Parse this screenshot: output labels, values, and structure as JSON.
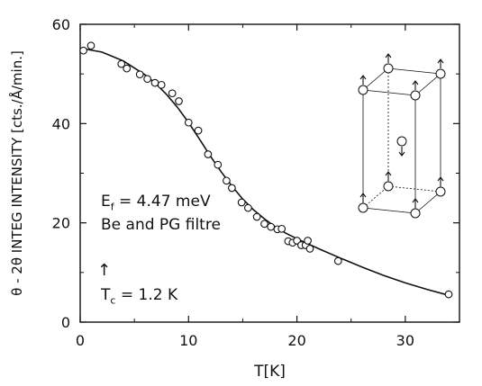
{
  "chart_data": {
    "type": "scatter",
    "xlabel": "T[K]",
    "ylabel": "θ - 2θ  INTEG  INTENSITY  [cts./Å/min.]",
    "xlim": [
      0,
      35
    ],
    "ylim": [
      0,
      60
    ],
    "xticks": [
      "0",
      "10",
      "20",
      "30"
    ],
    "yticks": [
      "0",
      "20",
      "40",
      "60"
    ],
    "grid": false,
    "legend": "none",
    "series": [
      {
        "marker": "open-circle",
        "x": [
          0.3,
          1.0,
          3.8,
          4.3,
          5.5,
          6.2,
          6.9,
          7.5,
          8.5,
          9.1,
          10.0,
          10.9,
          11.8,
          12.7,
          13.5,
          14.0,
          14.9,
          15.5,
          16.3,
          17.0,
          17.6,
          18.2,
          18.6,
          19.2,
          19.6,
          20.0,
          20.4,
          20.8,
          21.0,
          21.2,
          23.8,
          34.0
        ],
        "y": [
          54.7,
          55.7,
          52.0,
          51.1,
          49.9,
          49.0,
          48.2,
          47.8,
          46.1,
          44.5,
          40.2,
          38.6,
          33.8,
          31.7,
          28.5,
          27.0,
          24.1,
          23.0,
          21.2,
          19.8,
          19.2,
          18.7,
          18.8,
          16.3,
          16.0,
          16.4,
          15.5,
          15.5,
          16.4,
          14.8,
          12.3,
          5.6
        ]
      },
      {
        "style": "solid-line",
        "x": [
          0,
          2,
          4,
          6,
          7,
          8,
          9,
          10,
          11,
          12,
          13,
          14,
          15,
          16,
          17,
          18,
          19,
          20,
          21,
          22,
          24,
          26,
          28,
          30,
          32,
          34
        ],
        "y": [
          55.2,
          54.4,
          52.6,
          49.8,
          48.0,
          45.8,
          43.2,
          40.2,
          36.9,
          33.5,
          30.3,
          27.4,
          24.8,
          22.6,
          20.8,
          19.2,
          17.9,
          16.8,
          15.8,
          14.8,
          12.9,
          11.1,
          9.4,
          7.9,
          6.6,
          5.4
        ]
      }
    ]
  },
  "annotations": {
    "ef_label": "E",
    "ef_sub": "f",
    "ef_value": " = 4.47 meV",
    "filter_label": "Be and PG filtre",
    "tc_label": "T",
    "tc_sub": "c",
    "tc_value": " = 1.2 K",
    "tc_arrow": "↑"
  }
}
